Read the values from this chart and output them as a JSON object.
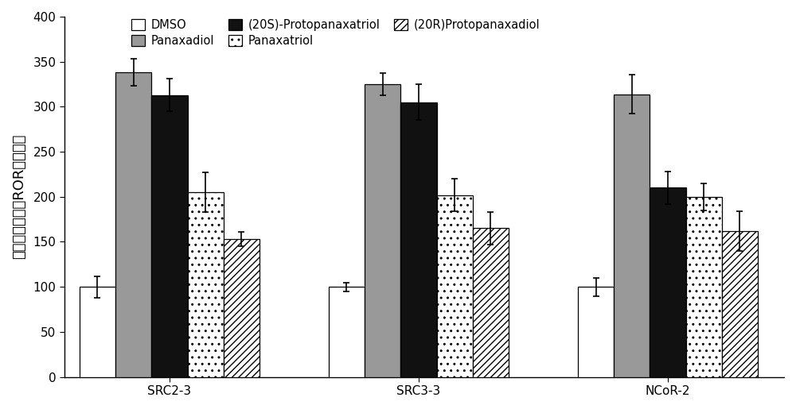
{
  "groups": [
    "SRC2-3",
    "SRC3-3",
    "NCoR-2"
  ],
  "series": [
    {
      "label": "DMSO",
      "values": [
        100,
        100,
        100
      ],
      "errors": [
        12,
        5,
        10
      ],
      "color": "#ffffff",
      "edgecolor": "#000000",
      "hatch": ""
    },
    {
      "label": "Panaxadiol",
      "values": [
        338,
        325,
        314
      ],
      "errors": [
        15,
        12,
        22
      ],
      "color": "#999999",
      "edgecolor": "#000000",
      "hatch": ""
    },
    {
      "label": "(20S)-Protopanaxatriol",
      "values": [
        313,
        305,
        210
      ],
      "errors": [
        18,
        20,
        18
      ],
      "color": "#111111",
      "edgecolor": "#000000",
      "hatch": ""
    },
    {
      "label": "Panaxatriol",
      "values": [
        205,
        202,
        200
      ],
      "errors": [
        22,
        18,
        15
      ],
      "color": "#ffffff",
      "edgecolor": "#000000",
      "hatch": ".."
    },
    {
      "label": "(20R)Protopanaxadiol",
      "values": [
        153,
        165,
        162
      ],
      "errors": [
        8,
        18,
        22
      ],
      "color": "#ffffff",
      "edgecolor": "#000000",
      "hatch": "////"
    }
  ],
  "ylim": [
    0,
    400
  ],
  "yticks": [
    0,
    50,
    100,
    150,
    200,
    250,
    300,
    350,
    400
  ],
  "ylabel": "辅调节因子结合ROR相对活性",
  "bar_width": 0.13,
  "group_centers": [
    0.38,
    1.28,
    2.18
  ],
  "figsize": [
    10.0,
    5.15
  ],
  "dpi": 100,
  "background_color": "#ffffff",
  "legend_fontsize": 10.5,
  "tick_fontsize": 11,
  "ylabel_fontsize": 13,
  "legend_row1": [
    "DMSO",
    "Panaxadiol",
    "(20S)-Protopanaxatriol"
  ],
  "legend_row2": [
    "Panaxatriol",
    "(20R)Protopanaxadiol"
  ]
}
